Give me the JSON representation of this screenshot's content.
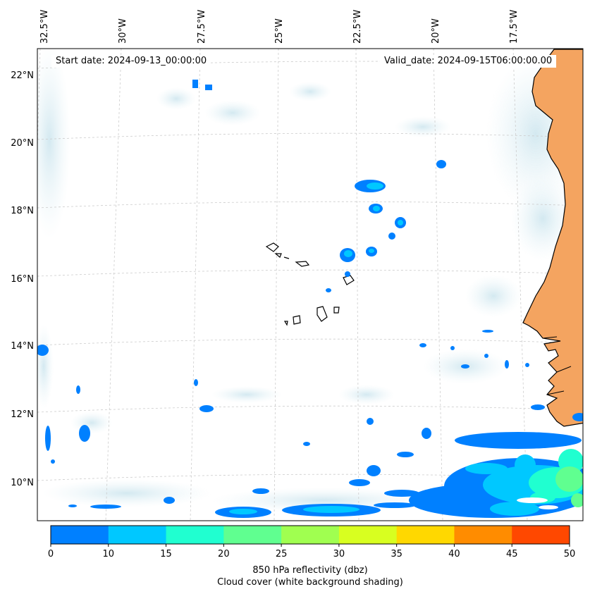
{
  "map": {
    "start_date": "Start date: 2024-09-13_00:00:00",
    "valid_date": "Valid_date: 2024-09-15T06:00:00.00",
    "lon_labels": [
      "32.5°W",
      "30°W",
      "27.5°W",
      "25°W",
      "22.5°W",
      "20°W",
      "17.5°W"
    ],
    "lat_labels": [
      "22°N",
      "20°N",
      "18°N",
      "16°N",
      "14°N",
      "12°N",
      "10°N"
    ],
    "colors": {
      "land_fill": "#f4a460",
      "coastline": "#000000",
      "gridline": "#cccccc",
      "cloud_shade": "#d6eaf0"
    }
  },
  "colorbar": {
    "ticks": [
      "0",
      "10",
      "15",
      "20",
      "25",
      "30",
      "35",
      "40",
      "45",
      "50"
    ],
    "colors": [
      "#0080ff",
      "#00c8ff",
      "#20ffd0",
      "#60ff90",
      "#a0ff50",
      "#d8ff20",
      "#ffd800",
      "#ff8c00",
      "#ff4800"
    ],
    "label_line1": "850 hPa reflectivity (dbz)",
    "label_line2": "Cloud cover (white background shading)"
  }
}
